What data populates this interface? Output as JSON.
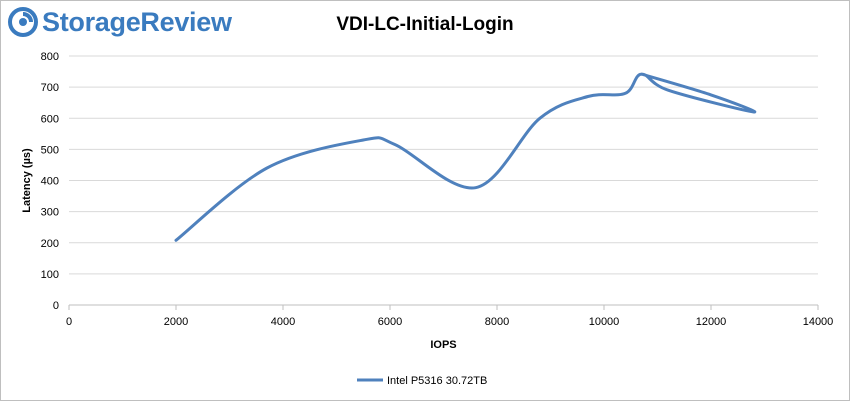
{
  "logo": {
    "text": "StorageReview"
  },
  "chart_data": {
    "type": "line",
    "title": "VDI-LC-Initial-Login",
    "xlabel": "IOPS",
    "ylabel": "Latency (µs)",
    "xlim": [
      0,
      14000
    ],
    "ylim": [
      0,
      800
    ],
    "xticks": [
      0,
      2000,
      4000,
      6000,
      8000,
      10000,
      12000,
      14000
    ],
    "yticks": [
      0,
      100,
      200,
      300,
      400,
      500,
      600,
      700,
      800
    ],
    "grid": "horizontal",
    "legend": "bottom",
    "series": [
      {
        "name": "Intel P5316 30.72TB",
        "color": "#4f81bd",
        "x": [
          2000,
          3700,
          5500,
          6100,
          7600,
          8800,
          9700,
          10400,
          10700,
          11200,
          12800,
          12000,
          10700
        ],
        "y": [
          208,
          440,
          530,
          515,
          377,
          600,
          670,
          680,
          742,
          690,
          620,
          675,
          742
        ]
      }
    ]
  }
}
